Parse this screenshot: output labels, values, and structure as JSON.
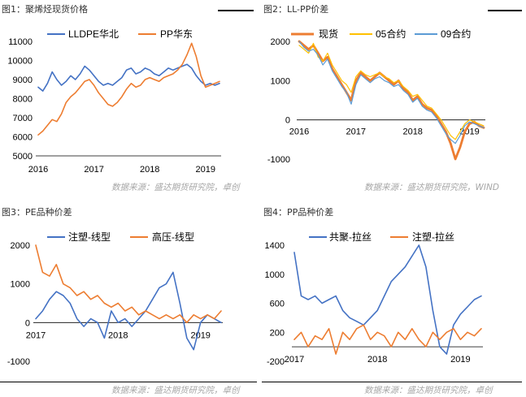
{
  "chart_data": [
    {
      "type": "line",
      "title": "图1：聚烯烃现货价格",
      "source": "数据来源：盛达期货研究院，卓创",
      "legend": "top",
      "grid": false,
      "xlim": [
        "2016-01",
        "2019-04"
      ],
      "ylim": [
        5000,
        11000
      ],
      "x_axis_at": 5000,
      "x_ticks": [
        "2016",
        "2017",
        "2018",
        "2019"
      ],
      "y_ticks": [
        5000,
        6000,
        7000,
        8000,
        9000,
        10000,
        11000
      ],
      "x": [
        "2016-01",
        "2016-02",
        "2016-03",
        "2016-04",
        "2016-05",
        "2016-06",
        "2016-07",
        "2016-08",
        "2016-09",
        "2016-10",
        "2016-11",
        "2016-12",
        "2017-01",
        "2017-02",
        "2017-03",
        "2017-04",
        "2017-05",
        "2017-06",
        "2017-07",
        "2017-08",
        "2017-09",
        "2017-10",
        "2017-11",
        "2017-12",
        "2018-01",
        "2018-02",
        "2018-03",
        "2018-04",
        "2018-05",
        "2018-06",
        "2018-07",
        "2018-08",
        "2018-09",
        "2018-10",
        "2018-11",
        "2018-12",
        "2019-01",
        "2019-02",
        "2019-03",
        "2019-04"
      ],
      "series": [
        {
          "name": "LLDPE华北",
          "color": "#4472C4",
          "values": [
            8600,
            8400,
            8800,
            9400,
            9000,
            8700,
            8900,
            9200,
            9000,
            9300,
            9700,
            9500,
            9200,
            8900,
            8700,
            8800,
            8700,
            8900,
            9100,
            9500,
            9600,
            9300,
            9400,
            9600,
            9500,
            9300,
            9200,
            9400,
            9600,
            9500,
            9600,
            9700,
            9800,
            9600,
            9200,
            8900,
            8700,
            8800,
            8700,
            8800
          ]
        },
        {
          "name": "PP华东",
          "color": "#ED7D31",
          "values": [
            6100,
            6300,
            6600,
            6900,
            6800,
            7200,
            7800,
            8100,
            8300,
            8600,
            8900,
            9000,
            8700,
            8300,
            8000,
            7700,
            7600,
            7800,
            8100,
            8500,
            8800,
            8600,
            8700,
            9000,
            9100,
            9000,
            8900,
            9100,
            9200,
            9300,
            9500,
            9800,
            10300,
            10900,
            10200,
            9200,
            8600,
            8700,
            8800,
            8900
          ]
        }
      ]
    },
    {
      "type": "line",
      "title": "图2：LL-PP价差",
      "source": "数据来源：盛达期货研究院，WIND",
      "legend": "top",
      "grid": false,
      "xlim": [
        "2016-01",
        "2019-04"
      ],
      "ylim": [
        -1000,
        2000
      ],
      "x_axis_at": 0,
      "x_ticks": [
        "2016",
        "2017",
        "2018",
        "2019"
      ],
      "y_ticks": [
        -1000,
        0,
        1000,
        2000
      ],
      "x": [
        "2016-01",
        "2016-02",
        "2016-03",
        "2016-04",
        "2016-05",
        "2016-06",
        "2016-07",
        "2016-08",
        "2016-09",
        "2016-10",
        "2016-11",
        "2016-12",
        "2017-01",
        "2017-02",
        "2017-03",
        "2017-04",
        "2017-05",
        "2017-06",
        "2017-07",
        "2017-08",
        "2017-09",
        "2017-10",
        "2017-11",
        "2017-12",
        "2018-01",
        "2018-02",
        "2018-03",
        "2018-04",
        "2018-05",
        "2018-06",
        "2018-07",
        "2018-08",
        "2018-09",
        "2018-10",
        "2018-11",
        "2018-12",
        "2019-01",
        "2019-02",
        "2019-03",
        "2019-04"
      ],
      "series": [
        {
          "name": "现货",
          "color": "#ED7D31",
          "values": [
            2000,
            1900,
            1800,
            1900,
            1700,
            1500,
            1600,
            1300,
            1100,
            900,
            700,
            500,
            1000,
            1200,
            1100,
            1000,
            1100,
            1200,
            1100,
            1000,
            900,
            1000,
            800,
            700,
            500,
            600,
            400,
            300,
            250,
            100,
            -100,
            -300,
            -600,
            -1000,
            -700,
            -300,
            -100,
            -50,
            -150,
            -200
          ]
        },
        {
          "name": "05合约",
          "color": "#FFC000",
          "values": [
            1900,
            1800,
            1700,
            1950,
            1600,
            1500,
            1700,
            1400,
            1200,
            1000,
            900,
            700,
            1100,
            1250,
            1150,
            1100,
            1150,
            1200,
            1100,
            1050,
            950,
            1000,
            850,
            750,
            600,
            650,
            500,
            350,
            300,
            150,
            0,
            -200,
            -400,
            -500,
            -300,
            -100,
            0,
            -50,
            -100,
            -150
          ]
        },
        {
          "name": "09合约",
          "color": "#5B9BD5",
          "values": [
            2000,
            1850,
            1750,
            1800,
            1650,
            1400,
            1550,
            1250,
            1050,
            850,
            700,
            400,
            900,
            1150,
            1050,
            950,
            1050,
            1100,
            1000,
            950,
            850,
            900,
            750,
            650,
            450,
            550,
            350,
            250,
            200,
            50,
            -150,
            -350,
            -500,
            -600,
            -400,
            -150,
            -50,
            -100,
            -150,
            -200
          ]
        }
      ]
    },
    {
      "type": "line",
      "title": "图3：PE品种价差",
      "source": "数据来源：盛达期货研究院，卓创",
      "legend": "top",
      "grid": false,
      "xlim": [
        "2017-01",
        "2019-04"
      ],
      "ylim": [
        -1000,
        2000
      ],
      "x_axis_at": 0,
      "x_ticks": [
        "2017",
        "2018",
        "2019"
      ],
      "y_ticks": [
        -1000,
        0,
        1000,
        2000
      ],
      "x": [
        "2017-01",
        "2017-02",
        "2017-03",
        "2017-04",
        "2017-05",
        "2017-06",
        "2017-07",
        "2017-08",
        "2017-09",
        "2017-10",
        "2017-11",
        "2017-12",
        "2018-01",
        "2018-02",
        "2018-03",
        "2018-04",
        "2018-05",
        "2018-06",
        "2018-07",
        "2018-08",
        "2018-09",
        "2018-10",
        "2018-11",
        "2018-12",
        "2019-01",
        "2019-02",
        "2019-03",
        "2019-04"
      ],
      "series": [
        {
          "name": "注塑-线型",
          "color": "#4472C4",
          "values": [
            100,
            300,
            600,
            800,
            700,
            500,
            100,
            -100,
            100,
            0,
            -400,
            300,
            0,
            100,
            -100,
            100,
            300,
            600,
            900,
            1000,
            1300,
            500,
            -400,
            -700,
            0,
            200,
            100,
            0
          ]
        },
        {
          "name": "高压-线型",
          "color": "#ED7D31",
          "values": [
            2000,
            1300,
            1200,
            1500,
            1000,
            900,
            700,
            800,
            600,
            700,
            500,
            400,
            500,
            300,
            400,
            200,
            300,
            200,
            100,
            200,
            100,
            200,
            0,
            200,
            100,
            200,
            100,
            300
          ]
        }
      ]
    },
    {
      "type": "line",
      "title": "图4：PP品种价差",
      "source": "数据来源：盛达期货研究院，卓创",
      "legend": "top",
      "grid": false,
      "xlim": [
        "2017-01",
        "2019-04"
      ],
      "ylim": [
        -200,
        1400
      ],
      "x_axis_at": 0,
      "x_ticks": [
        "2017",
        "2018",
        "2019"
      ],
      "y_ticks": [
        -200,
        200,
        600,
        1000,
        1400
      ],
      "x": [
        "2017-01",
        "2017-02",
        "2017-03",
        "2017-04",
        "2017-05",
        "2017-06",
        "2017-07",
        "2017-08",
        "2017-09",
        "2017-10",
        "2017-11",
        "2017-12",
        "2018-01",
        "2018-02",
        "2018-03",
        "2018-04",
        "2018-05",
        "2018-06",
        "2018-07",
        "2018-08",
        "2018-09",
        "2018-10",
        "2018-11",
        "2018-12",
        "2019-01",
        "2019-02",
        "2019-03",
        "2019-04"
      ],
      "series": [
        {
          "name": "共聚-拉丝",
          "color": "#4472C4",
          "values": [
            1300,
            700,
            650,
            700,
            600,
            650,
            700,
            500,
            400,
            350,
            300,
            400,
            500,
            700,
            900,
            1000,
            1100,
            1250,
            1400,
            1100,
            500,
            0,
            -100,
            300,
            450,
            550,
            650,
            700
          ]
        },
        {
          "name": "注塑-拉丝",
          "color": "#ED7D31",
          "values": [
            100,
            200,
            0,
            150,
            100,
            250,
            -100,
            200,
            100,
            250,
            300,
            100,
            200,
            150,
            0,
            200,
            100,
            250,
            100,
            0,
            200,
            100,
            200,
            250,
            100,
            200,
            150,
            250
          ]
        }
      ]
    }
  ]
}
